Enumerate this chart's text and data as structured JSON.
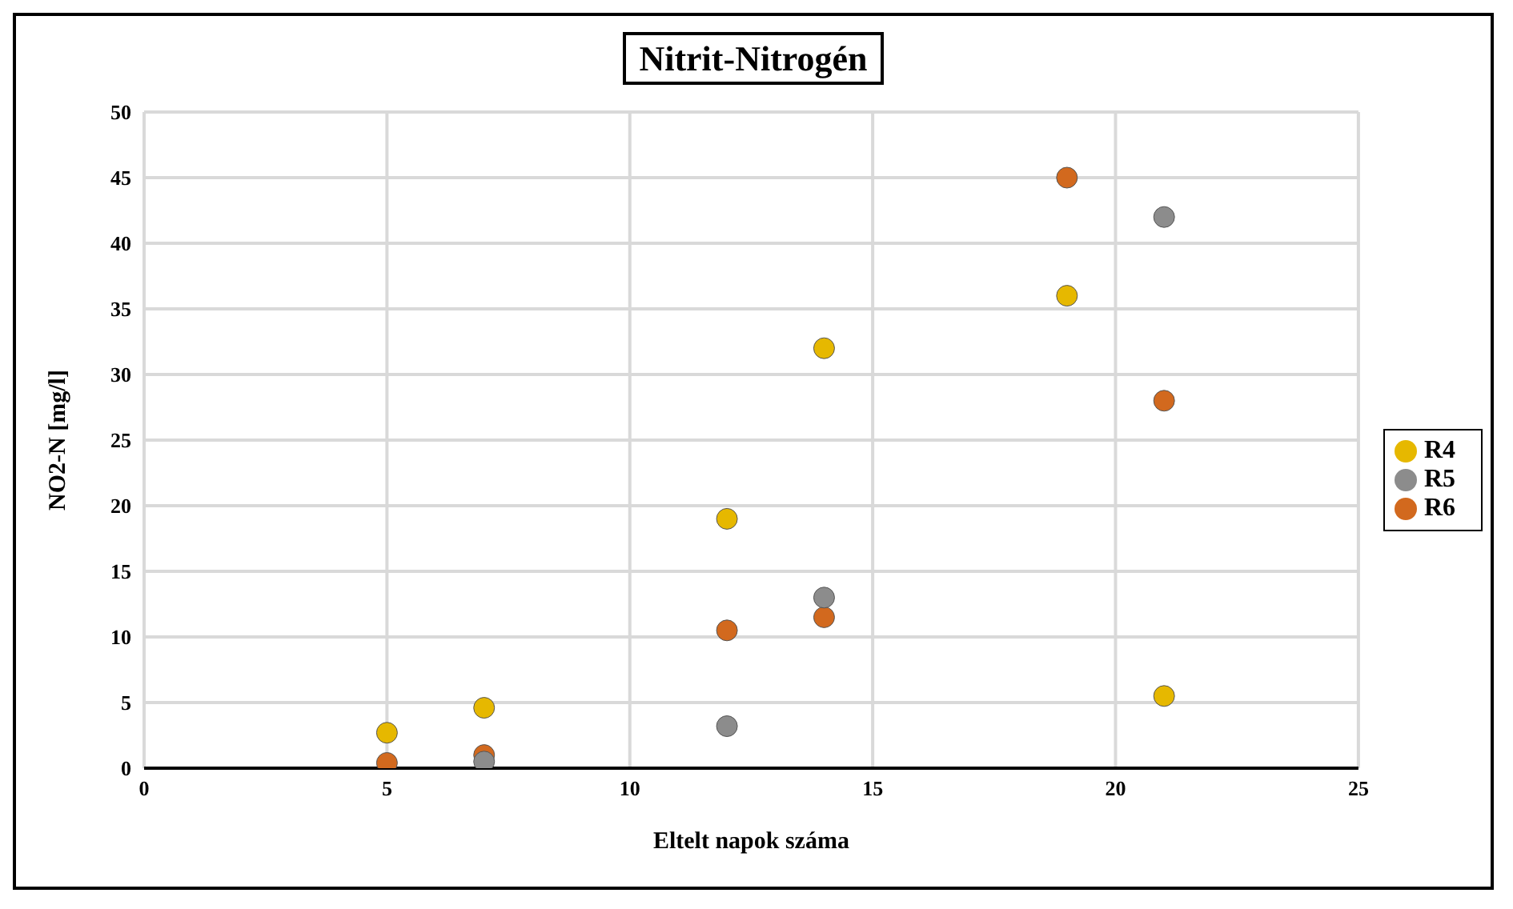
{
  "chart_data": {
    "type": "scatter",
    "title": "Nitrit-Nitrogén",
    "xlabel": "Eltelt napok száma",
    "ylabel": "NO2-N [mg/l]",
    "x": [
      5,
      7,
      12,
      14,
      19,
      21
    ],
    "series": [
      {
        "name": "R4",
        "color": "#e6b800",
        "values": [
          2.7,
          4.6,
          19,
          32,
          36,
          5.5
        ]
      },
      {
        "name": "R5",
        "color": "#8c8c8c",
        "values": [
          null,
          0.5,
          3.2,
          13,
          null,
          42
        ]
      },
      {
        "name": "R6",
        "color": "#d2691e",
        "values": [
          0.4,
          1,
          10.5,
          11.5,
          45,
          28
        ]
      }
    ],
    "xlim": [
      0,
      25
    ],
    "xticks": [
      0,
      5,
      10,
      15,
      20,
      25
    ],
    "ylim": [
      0,
      50
    ],
    "yticks": [
      0,
      5,
      10,
      15,
      20,
      25,
      30,
      35,
      40,
      45,
      50
    ],
    "grid": true,
    "legend": "right",
    "marker": "circle"
  }
}
